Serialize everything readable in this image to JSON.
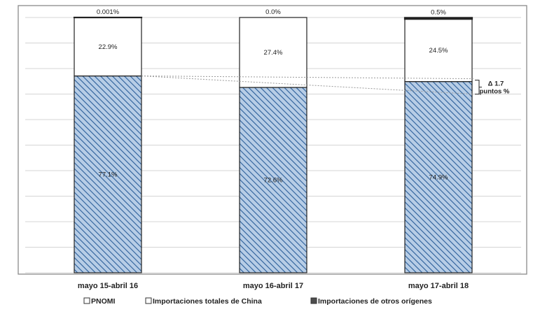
{
  "chart_data": {
    "type": "bar",
    "stacked": "percent",
    "categories": [
      "mayo 15-abril 16",
      "mayo 16-abril 17",
      "mayo 17-abril 18"
    ],
    "series": [
      {
        "name": "PNOMI",
        "values": [
          0.001,
          0.0,
          0.5
        ],
        "labels": [
          "0.001%",
          "0.0%",
          "0.5%"
        ],
        "fill": "#ffffff",
        "pattern": "none"
      },
      {
        "name": "Importaciones totales de China",
        "values": [
          22.9,
          27.4,
          24.5
        ],
        "labels": [
          "22.9%",
          "27.4%",
          "24.5%"
        ],
        "fill": "#ffffff",
        "pattern": "none"
      },
      {
        "name": "Importaciones de otros orígenes",
        "values": [
          77.1,
          72.6,
          74.9
        ],
        "labels": [
          "77.1%",
          "72.6%",
          "74.9%"
        ],
        "fill": "#b7cde6",
        "pattern": "diagonal-hatch"
      }
    ],
    "ylim": [
      0,
      100
    ],
    "grid": true,
    "legend": "bottom",
    "annotation": {
      "line1": "Δ 1.7",
      "line2": "puntos %"
    },
    "colors": {
      "gridline": "#d4d4d4",
      "border": "#8a8a8a",
      "bar_outline": "#222222",
      "hatch": "#2b5e9a",
      "text": "#222222"
    }
  }
}
